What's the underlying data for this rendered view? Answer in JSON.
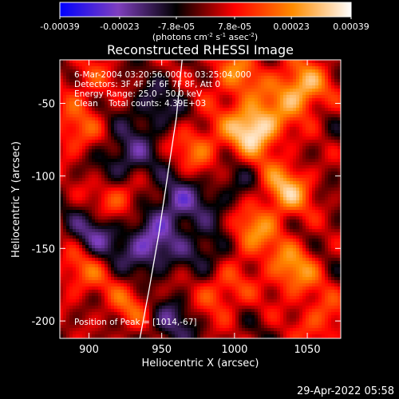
{
  "colorbar": {
    "ticks": [
      "-0.00039",
      "-0.00023",
      "-7.8e-05",
      "7.8e-05",
      "0.00023",
      "0.00039"
    ],
    "tick_values": [
      -0.00039,
      -0.00023,
      -7.8e-05,
      7.8e-05,
      0.00023,
      0.00039
    ],
    "range": [
      -0.00039,
      0.00039
    ],
    "unit_main": "(photons cm",
    "unit_exp1": "-2",
    "unit_mid": " s",
    "unit_exp2": "-1",
    "unit_tail": " asec",
    "unit_exp3": "-2",
    "unit_close": ")",
    "colors": [
      "#0000ff",
      "#7f3fbf",
      "#000000",
      "#ff0000",
      "#ff8c00",
      "#ffffff"
    ]
  },
  "chart_data": {
    "type": "heatmap",
    "title": "Reconstructed RHESSI Image",
    "xlabel": "Heliocentric X (arcsec)",
    "ylabel": "Heliocentric Y (arcsec)",
    "xlim": [
      880,
      1073
    ],
    "ylim": [
      -212,
      -20
    ],
    "x_ticks": [
      900,
      950,
      1000,
      1050
    ],
    "y_ticks": [
      -50,
      -100,
      -150,
      -200
    ],
    "info_lines": [
      "6-Mar-2004 03:20:56.000 to 03:25:04.000",
      "Detectors: 3F 4F 5F 6F 7F 8F, Att 0",
      "Energy Range: 25.0 - 50.0 keV",
      "Clean    Total counts: 4.39E+03"
    ],
    "peak_label": "Position of Peak = [1014,-67]",
    "peak": [
      1014,
      -67
    ],
    "limb_points": [
      [
        964,
        -20
      ],
      [
        960,
        -60
      ],
      [
        954,
        -100
      ],
      [
        948,
        -140
      ],
      [
        941,
        -180
      ],
      [
        935,
        -212
      ]
    ],
    "sources": [
      {
        "x": 1014,
        "y": -67,
        "v": 1.0
      },
      {
        "x": 1045,
        "y": -40,
        "v": 0.8
      },
      {
        "x": 1035,
        "y": -110,
        "v": 0.7
      },
      {
        "x": 1010,
        "y": -140,
        "v": 0.6
      },
      {
        "x": 1040,
        "y": -165,
        "v": 0.6
      },
      {
        "x": 1000,
        "y": -30,
        "v": 0.5
      },
      {
        "x": 975,
        "y": -80,
        "v": 0.45
      },
      {
        "x": 990,
        "y": -180,
        "v": 0.45
      },
      {
        "x": 1060,
        "y": -200,
        "v": 0.4
      },
      {
        "x": 890,
        "y": -70,
        "v": 0.4
      },
      {
        "x": 920,
        "y": -115,
        "v": 0.5
      },
      {
        "x": 895,
        "y": -165,
        "v": 0.45
      },
      {
        "x": 930,
        "y": -190,
        "v": 0.4
      },
      {
        "x": 900,
        "y": -35,
        "v": 0.3
      },
      {
        "x": 940,
        "y": -150,
        "v": -0.6
      },
      {
        "x": 925,
        "y": -90,
        "v": -0.5
      },
      {
        "x": 960,
        "y": -120,
        "v": -0.55
      },
      {
        "x": 905,
        "y": -140,
        "v": -0.5
      },
      {
        "x": 985,
        "y": -150,
        "v": -0.4
      },
      {
        "x": 955,
        "y": -200,
        "v": -0.4
      },
      {
        "x": 945,
        "y": -55,
        "v": -0.35
      },
      {
        "x": 1000,
        "y": -110,
        "v": -0.25
      }
    ]
  },
  "footer": {
    "date": "29-Apr-2022 05:58"
  }
}
